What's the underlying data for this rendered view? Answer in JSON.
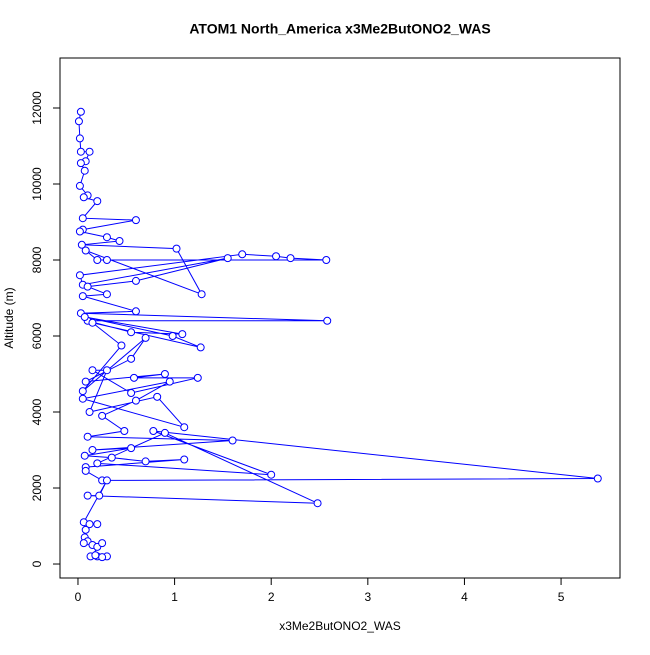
{
  "chart_data": {
    "type": "line",
    "title": "ATOM1 North_America x3Me2ButONO2_WAS",
    "xlabel": "x3Me2ButONO2_WAS",
    "ylabel": "Altitude (m)",
    "x": [
      0.03,
      0.01,
      0.02,
      0.03,
      0.12,
      0.08,
      0.03,
      0.07,
      0.02,
      0.1,
      0.06,
      0.2,
      0.05,
      0.6,
      0.05,
      0.02,
      0.3,
      0.43,
      0.04,
      1.02,
      1.28,
      0.08,
      0.2,
      0.3,
      2.57,
      2.2,
      2.05,
      1.7,
      0.02,
      0.05,
      1.55,
      0.6,
      0.1,
      0.3,
      0.05,
      0.6,
      0.03,
      2.58,
      0.1,
      0.55,
      1.08,
      0.07,
      0.98,
      1.27,
      0.15,
      0.45,
      0.05,
      0.7,
      0.55,
      0.08,
      0.9,
      0.58,
      1.24,
      0.55,
      0.15,
      0.3,
      0.12,
      0.82,
      1.1,
      0.05,
      0.95,
      0.6,
      0.25,
      0.48,
      0.1,
      1.6,
      0.15,
      0.55,
      0.07,
      0.35,
      0.7,
      1.1,
      0.08,
      0.08,
      0.25,
      5.38,
      0.78,
      2.0,
      0.2,
      0.9,
      2.48,
      0.1,
      0.22,
      0.3,
      0.06,
      0.2,
      0.12,
      0.08,
      0.07,
      0.1,
      0.06,
      0.15,
      0.2,
      0.25,
      0.13,
      0.2,
      0.3,
      0.25,
      0.18
    ],
    "series": [
      {
        "color": "#0000ff",
        "values": [
          11900,
          11650,
          11200,
          10850,
          10850,
          10600,
          10550,
          10350,
          9950,
          9700,
          9650,
          9550,
          9100,
          9050,
          8800,
          8750,
          8600,
          8500,
          8400,
          8300,
          7100,
          8250,
          8000,
          8000,
          8000,
          8050,
          8100,
          8150,
          7600,
          7350,
          8050,
          7450,
          7300,
          7100,
          7050,
          6650,
          6600,
          6400,
          6400,
          6100,
          6050,
          6500,
          6000,
          5700,
          6350,
          5750,
          4550,
          5950,
          5400,
          4800,
          5000,
          4900,
          4900,
          4500,
          5100,
          5100,
          4000,
          4400,
          3600,
          4350,
          4800,
          4300,
          3900,
          3500,
          3350,
          3250,
          3000,
          3050,
          2850,
          2800,
          2700,
          2750,
          2550,
          2450,
          2200,
          2250,
          3500,
          2350,
          2650,
          3450,
          1600,
          1800,
          1800,
          2200,
          1100,
          1050,
          1050,
          900,
          700,
          600,
          550,
          500,
          450,
          550,
          200,
          200,
          200,
          180,
          230
        ]
      }
    ],
    "xlim": [
      -0.186,
      5.61
    ],
    "ylim": [
      -368,
      13316
    ],
    "xticks": [
      0,
      1,
      2,
      3,
      4,
      5
    ],
    "yticks": [
      0,
      2000,
      4000,
      6000,
      8000,
      10000,
      12000
    ]
  }
}
